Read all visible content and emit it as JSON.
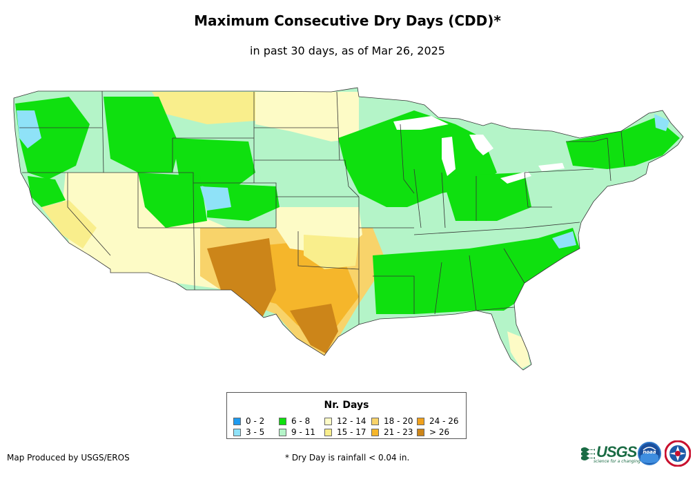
{
  "title": "Maximum Consecutive Dry Days (CDD)*",
  "subtitle": "in past 30 days, as of Mar 26, 2025",
  "legend": {
    "title": "Nr. Days",
    "items": [
      {
        "label": "0 - 2",
        "color": "#1f9bf0"
      },
      {
        "label": "3 - 5",
        "color": "#8fe2f8"
      },
      {
        "label": "6 - 8",
        "color": "#0fe00f"
      },
      {
        "label": "9 - 11",
        "color": "#b4f4c8"
      },
      {
        "label": "12 - 14",
        "color": "#fdfbc6"
      },
      {
        "label": "15 - 17",
        "color": "#f9ee8c"
      },
      {
        "label": "18 - 20",
        "color": "#f8d36a"
      },
      {
        "label": "21 - 23",
        "color": "#f5b62b"
      },
      {
        "label": "24 - 26",
        "color": "#f0a11d"
      },
      {
        "label": "> 26",
        "color": "#cc8519"
      }
    ]
  },
  "footer": {
    "credit": "Map Produced by USGS/EROS",
    "note": "* Dry Day is rainfall < 0.04 in."
  },
  "logos": {
    "usgs": "USGS",
    "usgs_tagline": "science for a changing world",
    "noaa": "noaa"
  },
  "icons": [
    "usgs-logo-icon",
    "noaa-logo-icon",
    "nws-logo-icon"
  ]
}
